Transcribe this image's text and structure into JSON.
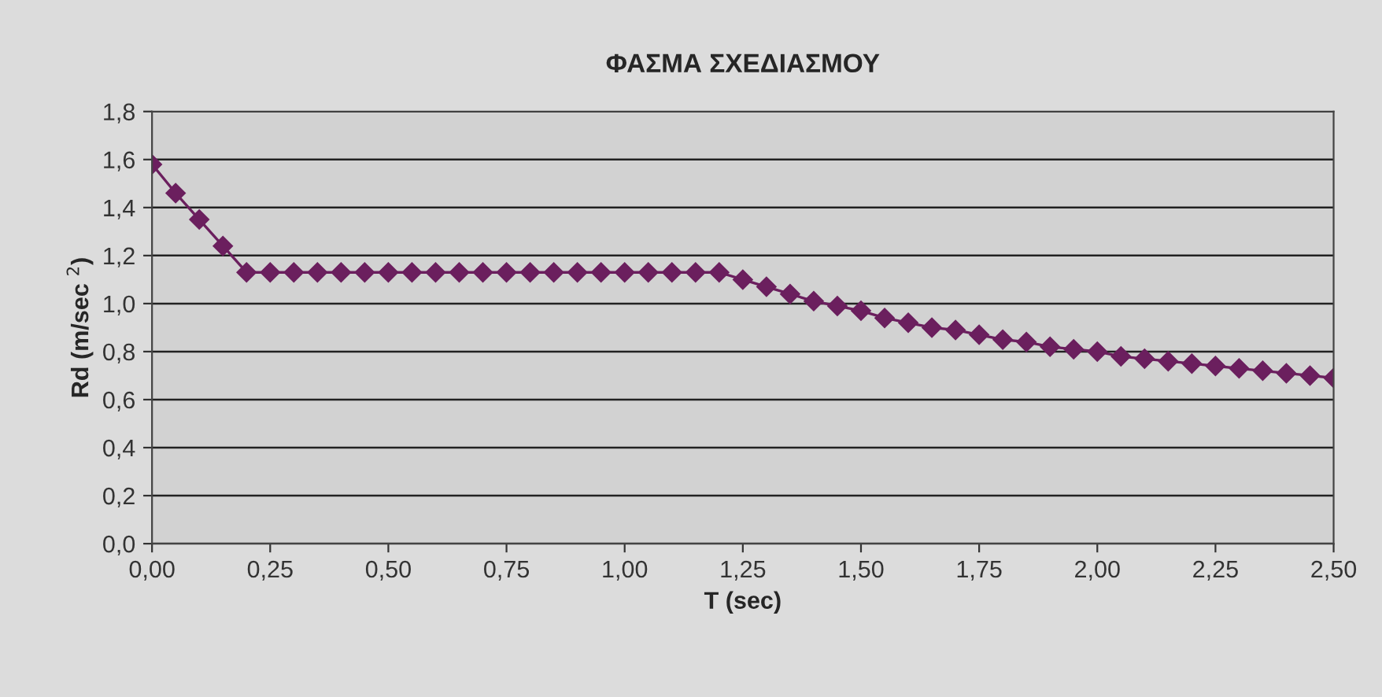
{
  "chart_data": {
    "type": "line",
    "title": "ΦΑΣΜΑ ΣΧΕΔΙΑΣΜΟΥ",
    "xlabel": "T (sec)",
    "ylabel": "Rd (m/sec $^{2}$)",
    "x": [
      0,
      0.05,
      0.1,
      0.15,
      0.2,
      0.25,
      0.3,
      0.35,
      0.4,
      0.45,
      0.5,
      0.55,
      0.6,
      0.65,
      0.7,
      0.75,
      0.8,
      0.85,
      0.9,
      0.95,
      1.0,
      1.05,
      1.1,
      1.15,
      1.2,
      1.25,
      1.3,
      1.35,
      1.4,
      1.45,
      1.5,
      1.55,
      1.6,
      1.65,
      1.7,
      1.75,
      1.8,
      1.85,
      1.9,
      1.95,
      2.0,
      2.05,
      2.1,
      2.15,
      2.2,
      2.25,
      2.3,
      2.35,
      2.4,
      2.45,
      2.5
    ],
    "series": [
      {
        "color": "#6b1f5e",
        "values": [
          1.58,
          1.46,
          1.35,
          1.24,
          1.13,
          1.13,
          1.13,
          1.13,
          1.13,
          1.13,
          1.13,
          1.13,
          1.13,
          1.13,
          1.13,
          1.13,
          1.13,
          1.13,
          1.13,
          1.13,
          1.13,
          1.13,
          1.13,
          1.13,
          1.13,
          1.1,
          1.07,
          1.04,
          1.01,
          0.99,
          0.97,
          0.94,
          0.92,
          0.9,
          0.89,
          0.87,
          0.85,
          0.84,
          0.82,
          0.81,
          0.8,
          0.78,
          0.77,
          0.76,
          0.75,
          0.74,
          0.73,
          0.72,
          0.71,
          0.7,
          0.69
        ]
      }
    ],
    "xlim": [
      0,
      2.5
    ],
    "ylim": [
      0,
      1.8
    ],
    "xticks": [
      {
        "value": 0,
        "label": "0,00"
      },
      {
        "value": 0.25,
        "label": "0,25"
      },
      {
        "value": 0.5,
        "label": "0,50"
      },
      {
        "value": 0.75,
        "label": "0,75"
      },
      {
        "value": 1.0,
        "label": "1,00"
      },
      {
        "value": 1.25,
        "label": "1,25"
      },
      {
        "value": 1.5,
        "label": "1,50"
      },
      {
        "value": 1.75,
        "label": "1,75"
      },
      {
        "value": 2.0,
        "label": "2,00"
      },
      {
        "value": 2.25,
        "label": "2,25"
      },
      {
        "value": 2.5,
        "label": "2,50"
      }
    ],
    "yticks": [
      {
        "value": 0,
        "label": "0,0"
      },
      {
        "value": 0.2,
        "label": "0,2"
      },
      {
        "value": 0.4,
        "label": "0,4"
      },
      {
        "value": 0.6,
        "label": "0,6"
      },
      {
        "value": 0.8,
        "label": "0,8"
      },
      {
        "value": 1.0,
        "label": "1,0"
      },
      {
        "value": 1.2,
        "label": "1,2"
      },
      {
        "value": 1.4,
        "label": "1,4"
      },
      {
        "value": 1.6,
        "label": "1,6"
      },
      {
        "value": 1.8,
        "label": "1,8"
      }
    ],
    "grid": "y",
    "marker": "diamond",
    "line_style": "solid",
    "legend": false
  }
}
